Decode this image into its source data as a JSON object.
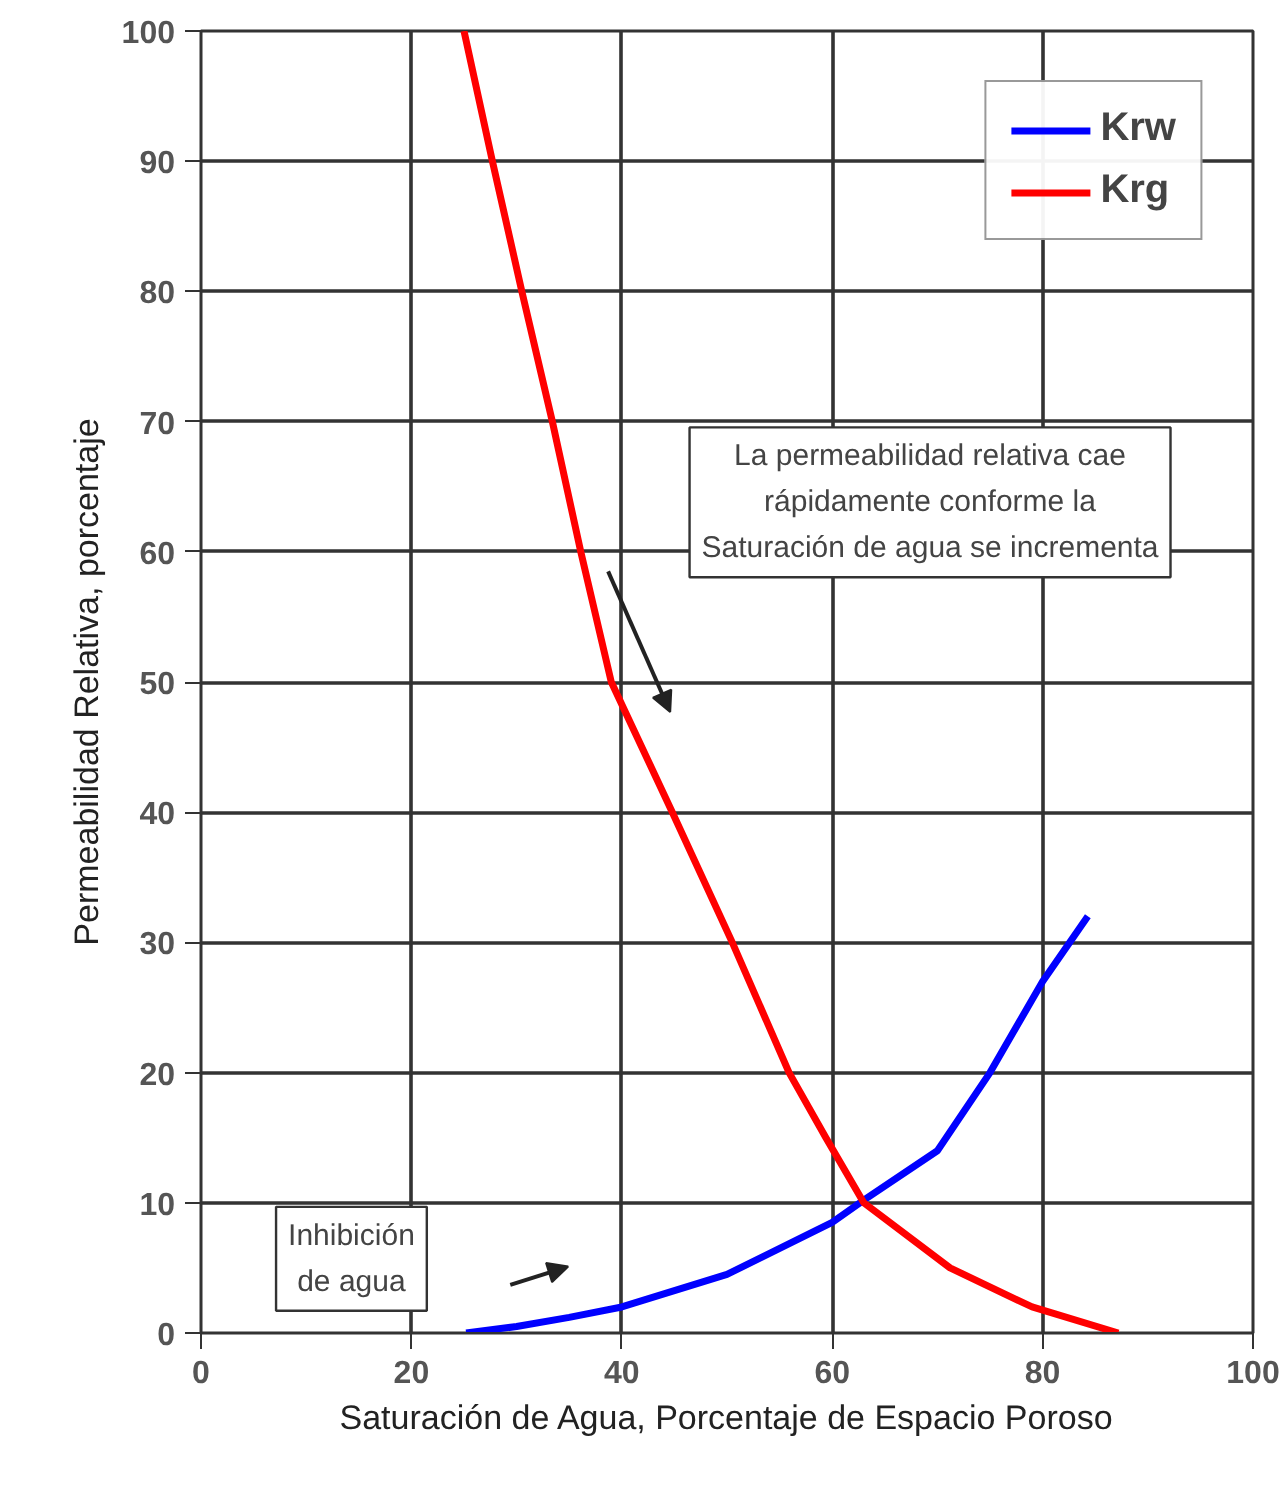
{
  "chart_data": {
    "type": "line",
    "xlabel": "Saturación de Agua, Porcentaje de Espacio Poroso",
    "ylabel": "Permeabilidad Relativa, porcentaje",
    "xlim": [
      0,
      100
    ],
    "xticks": [
      0,
      20,
      40,
      60,
      80,
      100
    ],
    "ylim": [
      0,
      100
    ],
    "yticks": [
      0,
      10,
      20,
      30,
      40,
      50,
      60,
      70,
      80,
      90,
      100
    ],
    "grid": true,
    "legend": "top right",
    "marker": "none",
    "line_style": "solid",
    "series": [
      {
        "name": "Krw",
        "color": "#0000ff",
        "x": [
          25.2,
          30,
          35,
          40,
          50,
          60,
          63,
          70,
          75,
          80,
          84.3
        ],
        "values": [
          0,
          0.5,
          1.2,
          2,
          4.5,
          8.5,
          10.2,
          14,
          20,
          27,
          32
        ]
      },
      {
        "name": "Krg",
        "color": "#ff0000",
        "x": [
          25,
          27.7,
          30.5,
          33.4,
          36.1,
          39,
          44.8,
          50.5,
          55.9,
          59.4,
          63,
          71.2,
          79,
          87.2
        ],
        "values": [
          100,
          90,
          80,
          70,
          60,
          50,
          40,
          30,
          20,
          15,
          10,
          5,
          2,
          0
        ]
      }
    ],
    "annotations": [
      "La permeabilidad relativa cae\nrápidamente conforme la\nSaturación de agua se incrementa",
      "Inhibición\nde agua"
    ]
  }
}
